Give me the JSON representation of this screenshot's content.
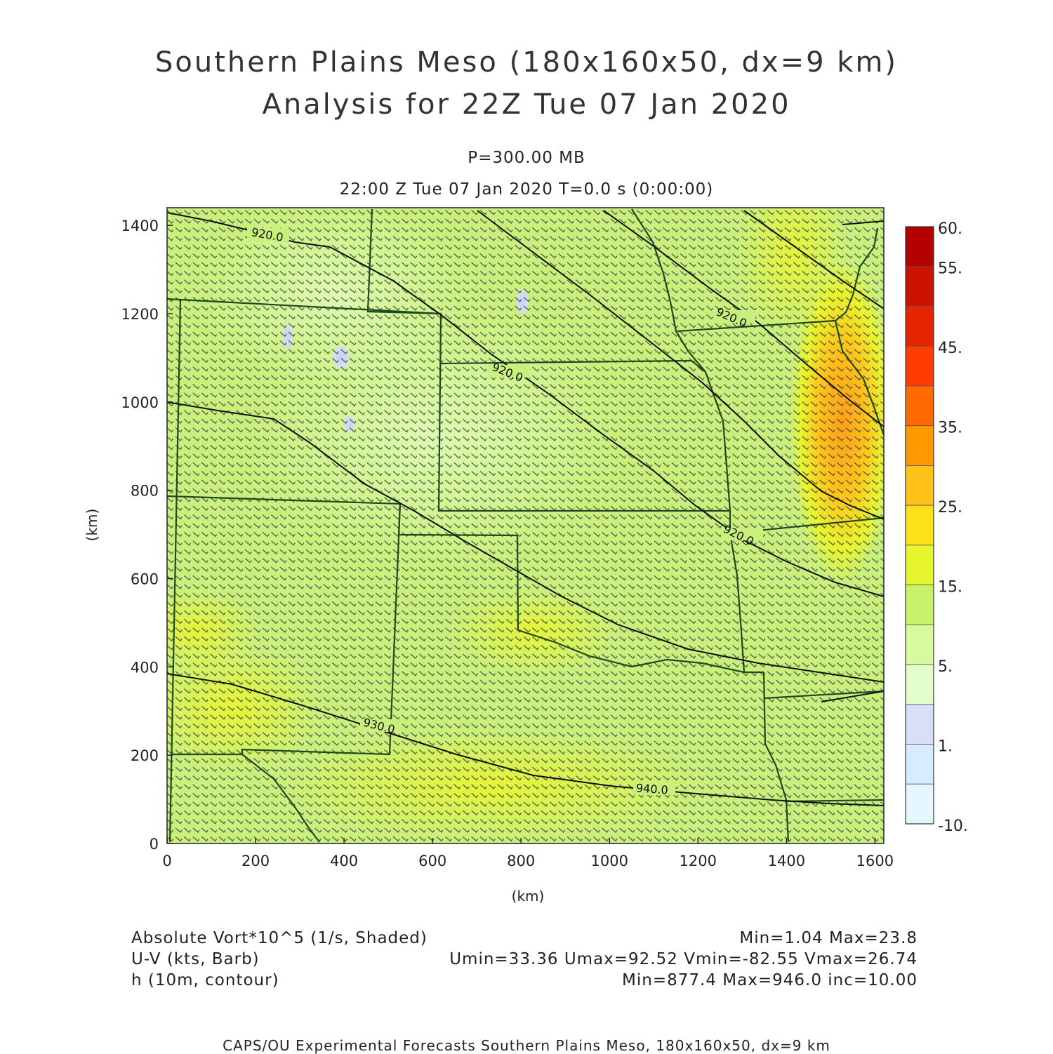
{
  "title": {
    "line1": "Southern Plains Meso (180x160x50, dx=9 km)",
    "line2": "Analysis for 22Z Tue 07 Jan 2020"
  },
  "level": "P=300.00 MB",
  "time_line": "22:00 Z Tue 07 Jan 2020    T=0.0 s (0:00:00)",
  "axes": {
    "x_label": "(km)",
    "y_label": "(km)",
    "x_ticks": [
      "0",
      "200",
      "400",
      "600",
      "800",
      "1000",
      "1200",
      "1400",
      "1600"
    ],
    "y_ticks": [
      "0",
      "200",
      "400",
      "600",
      "800",
      "1000",
      "1200",
      "1400"
    ],
    "x_range_km": [
      0,
      1620
    ],
    "y_range_km": [
      0,
      1440
    ]
  },
  "colorbar": {
    "labels": [
      "60.",
      "55.",
      "45.",
      "35.",
      "25.",
      "15.",
      "5.",
      "1.",
      "-10."
    ],
    "colors": [
      "#b30000",
      "#cc1200",
      "#e62500",
      "#ff3d00",
      "#ff6a00",
      "#ff9900",
      "#ffc21a",
      "#ffe119",
      "#e7f52e",
      "#c8f26a",
      "#d7fa9c",
      "#e2fdca",
      "#d8dff7",
      "#d6ecff",
      "#e6f6ff"
    ]
  },
  "contours": {
    "labels": [
      "920.0",
      "920.0",
      "920.0",
      "920.0",
      "930.0",
      "940.0"
    ]
  },
  "legend": {
    "left": [
      "Absolute Vort*10^5 (1/s, Shaded)",
      "U-V (kts, Barb)",
      "h (10m, contour)"
    ],
    "right": [
      "Min=1.04 Max=23.8",
      "Umin=33.36 Umax=92.52 Vmin=-82.55 Vmax=26.74",
      "Min=877.4 Max=946.0 inc=10.00"
    ]
  },
  "footer": "CAPS/OU Experimental Forecasts  Southern Plains Meso, 180x160x50, dx=9 km",
  "colors": {
    "field_base": "#c9f07c",
    "state_lines": "#1f4a1f",
    "contours": "#111111",
    "barbs": "#3a3a3a"
  }
}
